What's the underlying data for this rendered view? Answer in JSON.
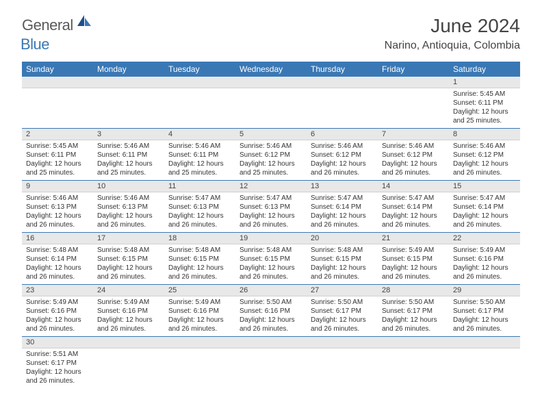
{
  "logo": {
    "text1": "General",
    "text2": "Blue"
  },
  "title": "June 2024",
  "location": "Narino, Antioquia, Colombia",
  "colors": {
    "header_bg": "#3a78b5",
    "header_text": "#ffffff",
    "daynum_bg": "#e8e8e8",
    "text": "#333333",
    "border": "#3a78b5"
  },
  "day_headers": [
    "Sunday",
    "Monday",
    "Tuesday",
    "Wednesday",
    "Thursday",
    "Friday",
    "Saturday"
  ],
  "weeks": [
    [
      null,
      null,
      null,
      null,
      null,
      null,
      {
        "n": "1",
        "sr": "5:45 AM",
        "ss": "6:11 PM",
        "dl": "12 hours and 25 minutes."
      }
    ],
    [
      {
        "n": "2",
        "sr": "5:45 AM",
        "ss": "6:11 PM",
        "dl": "12 hours and 25 minutes."
      },
      {
        "n": "3",
        "sr": "5:46 AM",
        "ss": "6:11 PM",
        "dl": "12 hours and 25 minutes."
      },
      {
        "n": "4",
        "sr": "5:46 AM",
        "ss": "6:11 PM",
        "dl": "12 hours and 25 minutes."
      },
      {
        "n": "5",
        "sr": "5:46 AM",
        "ss": "6:12 PM",
        "dl": "12 hours and 25 minutes."
      },
      {
        "n": "6",
        "sr": "5:46 AM",
        "ss": "6:12 PM",
        "dl": "12 hours and 26 minutes."
      },
      {
        "n": "7",
        "sr": "5:46 AM",
        "ss": "6:12 PM",
        "dl": "12 hours and 26 minutes."
      },
      {
        "n": "8",
        "sr": "5:46 AM",
        "ss": "6:12 PM",
        "dl": "12 hours and 26 minutes."
      }
    ],
    [
      {
        "n": "9",
        "sr": "5:46 AM",
        "ss": "6:13 PM",
        "dl": "12 hours and 26 minutes."
      },
      {
        "n": "10",
        "sr": "5:46 AM",
        "ss": "6:13 PM",
        "dl": "12 hours and 26 minutes."
      },
      {
        "n": "11",
        "sr": "5:47 AM",
        "ss": "6:13 PM",
        "dl": "12 hours and 26 minutes."
      },
      {
        "n": "12",
        "sr": "5:47 AM",
        "ss": "6:13 PM",
        "dl": "12 hours and 26 minutes."
      },
      {
        "n": "13",
        "sr": "5:47 AM",
        "ss": "6:14 PM",
        "dl": "12 hours and 26 minutes."
      },
      {
        "n": "14",
        "sr": "5:47 AM",
        "ss": "6:14 PM",
        "dl": "12 hours and 26 minutes."
      },
      {
        "n": "15",
        "sr": "5:47 AM",
        "ss": "6:14 PM",
        "dl": "12 hours and 26 minutes."
      }
    ],
    [
      {
        "n": "16",
        "sr": "5:48 AM",
        "ss": "6:14 PM",
        "dl": "12 hours and 26 minutes."
      },
      {
        "n": "17",
        "sr": "5:48 AM",
        "ss": "6:15 PM",
        "dl": "12 hours and 26 minutes."
      },
      {
        "n": "18",
        "sr": "5:48 AM",
        "ss": "6:15 PM",
        "dl": "12 hours and 26 minutes."
      },
      {
        "n": "19",
        "sr": "5:48 AM",
        "ss": "6:15 PM",
        "dl": "12 hours and 26 minutes."
      },
      {
        "n": "20",
        "sr": "5:48 AM",
        "ss": "6:15 PM",
        "dl": "12 hours and 26 minutes."
      },
      {
        "n": "21",
        "sr": "5:49 AM",
        "ss": "6:15 PM",
        "dl": "12 hours and 26 minutes."
      },
      {
        "n": "22",
        "sr": "5:49 AM",
        "ss": "6:16 PM",
        "dl": "12 hours and 26 minutes."
      }
    ],
    [
      {
        "n": "23",
        "sr": "5:49 AM",
        "ss": "6:16 PM",
        "dl": "12 hours and 26 minutes."
      },
      {
        "n": "24",
        "sr": "5:49 AM",
        "ss": "6:16 PM",
        "dl": "12 hours and 26 minutes."
      },
      {
        "n": "25",
        "sr": "5:49 AM",
        "ss": "6:16 PM",
        "dl": "12 hours and 26 minutes."
      },
      {
        "n": "26",
        "sr": "5:50 AM",
        "ss": "6:16 PM",
        "dl": "12 hours and 26 minutes."
      },
      {
        "n": "27",
        "sr": "5:50 AM",
        "ss": "6:17 PM",
        "dl": "12 hours and 26 minutes."
      },
      {
        "n": "28",
        "sr": "5:50 AM",
        "ss": "6:17 PM",
        "dl": "12 hours and 26 minutes."
      },
      {
        "n": "29",
        "sr": "5:50 AM",
        "ss": "6:17 PM",
        "dl": "12 hours and 26 minutes."
      }
    ],
    [
      {
        "n": "30",
        "sr": "5:51 AM",
        "ss": "6:17 PM",
        "dl": "12 hours and 26 minutes."
      },
      null,
      null,
      null,
      null,
      null,
      null
    ]
  ],
  "labels": {
    "sunrise": "Sunrise:",
    "sunset": "Sunset:",
    "daylight": "Daylight:"
  }
}
